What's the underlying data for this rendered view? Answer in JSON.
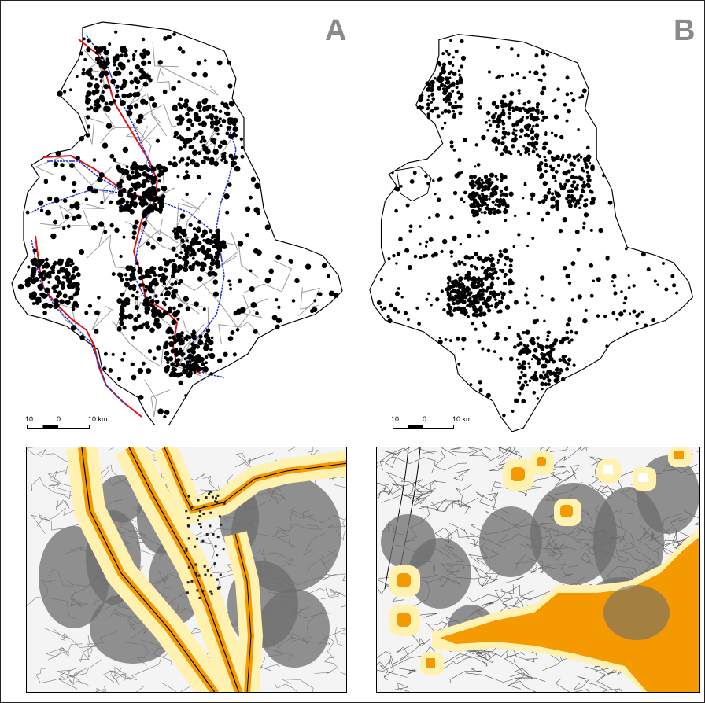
{
  "panels": {
    "a": {
      "letter": "A"
    },
    "b": {
      "letter": "B"
    }
  },
  "scale_bar": {
    "left_label": "10",
    "mid_label": "0",
    "right_label": "10 km"
  },
  "colors": {
    "region_outline": "#000000",
    "road_network": "#9a9a9a",
    "river_blue": "#1f2fd8",
    "river_red": "#e01010",
    "points": "#000000",
    "buffer_inner": "#f49a00",
    "buffer_outer": "#fff2b0",
    "hatch_zone": "#6e6e6e",
    "letter_gray": "#8a8a8a"
  },
  "icons": [
    "scale-bar-icon",
    "north-unspecified"
  ]
}
